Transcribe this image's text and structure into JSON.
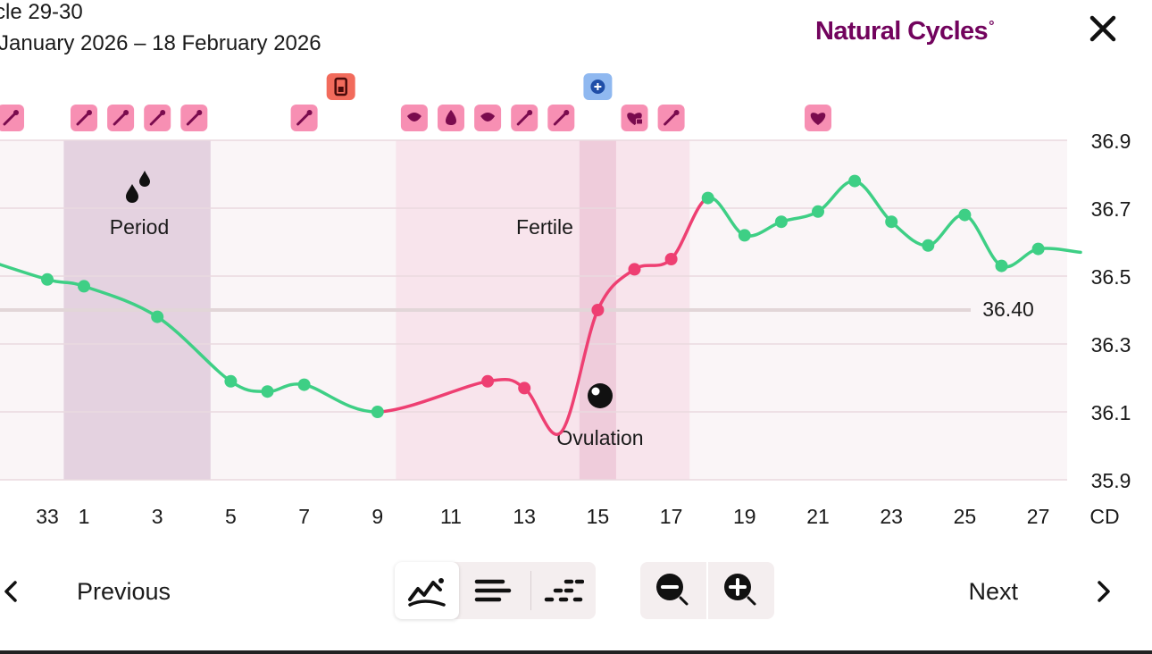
{
  "header": {
    "cycle_title": "cle 29-30",
    "date_range": "January 2026 – 18 February 2026",
    "logo_text": "Natural Cycles",
    "logo_ring": "°"
  },
  "colors": {
    "infertile": "#3ecf85",
    "fertile": "#ee3f72",
    "brand": "#72035d",
    "icon_badge": "#f78fb3",
    "period_band": "#e4d2e0",
    "fertile_band": "#f8e4ec",
    "ovulation_band": "#efccdb",
    "plot_bg": "#faf5f7"
  },
  "chart_data": {
    "type": "line",
    "title": "",
    "xlabel": "CD",
    "ylabel": "",
    "x_range": [
      32.5,
      27.8
    ],
    "ylim": [
      35.9,
      36.9
    ],
    "y_ticks": [
      "36.9",
      "36.7",
      "36.5",
      "36.3",
      "36.1",
      "35.9"
    ],
    "x_tick_labels": [
      "33",
      "1",
      "3",
      "5",
      "7",
      "9",
      "11",
      "13",
      "15",
      "17",
      "19",
      "21",
      "23",
      "25",
      "27"
    ],
    "x_axis_label": "CD",
    "cover_line": 36.4,
    "cover_line_label": "36.40",
    "points": [
      {
        "day": "1",
        "temp": 36.47,
        "fertile": false,
        "marker": true
      },
      {
        "day": "3",
        "temp": 36.38,
        "fertile": false,
        "marker": true
      },
      {
        "day": "5",
        "temp": 36.19,
        "fertile": false,
        "marker": true
      },
      {
        "day": "6",
        "temp": 36.16,
        "fertile": false,
        "marker": true
      },
      {
        "day": "7",
        "temp": 36.18,
        "fertile": false,
        "marker": true
      },
      {
        "day": "9",
        "temp": 36.1,
        "fertile": false,
        "marker": true
      },
      {
        "day": "12",
        "temp": 36.19,
        "fertile": true,
        "marker": true
      },
      {
        "day": "13",
        "temp": 36.17,
        "fertile": true,
        "marker": true
      },
      {
        "day": "14",
        "temp": 36.04,
        "fertile": true,
        "marker": false
      },
      {
        "day": "15",
        "temp": 36.4,
        "fertile": true,
        "marker": true
      },
      {
        "day": "16",
        "temp": 36.52,
        "fertile": true,
        "marker": true
      },
      {
        "day": "17",
        "temp": 36.55,
        "fertile": true,
        "marker": true
      },
      {
        "day": "18",
        "temp": 36.73,
        "fertile": false,
        "marker": true
      },
      {
        "day": "19",
        "temp": 36.62,
        "fertile": false,
        "marker": true
      },
      {
        "day": "20",
        "temp": 36.66,
        "fertile": false,
        "marker": true
      },
      {
        "day": "21",
        "temp": 36.69,
        "fertile": false,
        "marker": true
      },
      {
        "day": "22",
        "temp": 36.78,
        "fertile": false,
        "marker": true
      },
      {
        "day": "23",
        "temp": 36.66,
        "fertile": false,
        "marker": true
      },
      {
        "day": "24",
        "temp": 36.59,
        "fertile": false,
        "marker": true
      },
      {
        "day": "25",
        "temp": 36.68,
        "fertile": false,
        "marker": true
      },
      {
        "day": "26",
        "temp": 36.53,
        "fertile": false,
        "marker": true
      },
      {
        "day": "27",
        "temp": 36.58,
        "fertile": false,
        "marker": true
      }
    ],
    "bands": [
      {
        "name": "Period",
        "start": 0.45,
        "end": 4.45,
        "kind": "period"
      },
      {
        "name": "Fertile",
        "start": 9.5,
        "end": 17.5,
        "kind": "fertile"
      },
      {
        "name": "Ovulation",
        "start": 14.5,
        "end": 15.5,
        "kind": "ovulation"
      }
    ],
    "annotations": {
      "period": "Period",
      "fertile": "Fertile",
      "ovulation": "Ovulation"
    },
    "tracking_icons": [
      {
        "day": 33,
        "icon": "swab-icon"
      },
      {
        "day": 1,
        "icon": "swab-icon"
      },
      {
        "day": 2,
        "icon": "swab-icon"
      },
      {
        "day": 3,
        "icon": "swab-icon"
      },
      {
        "day": 4,
        "icon": "swab-icon"
      },
      {
        "day": 7,
        "icon": "swab-icon"
      },
      {
        "day": 10,
        "icon": "mucus-icon"
      },
      {
        "day": 11,
        "icon": "drop-icon"
      },
      {
        "day": 12,
        "icon": "mucus-icon"
      },
      {
        "day": 13,
        "icon": "swab-icon"
      },
      {
        "day": 14,
        "icon": "swab-icon"
      },
      {
        "day": 16,
        "icon": "heart-lock-icon"
      },
      {
        "day": 17,
        "icon": "swab-icon"
      },
      {
        "day": 21,
        "icon": "heart-icon"
      }
    ],
    "test_markers": [
      {
        "day": 8,
        "icon": "pregnancy-test-icon"
      },
      {
        "day": 15,
        "icon": "lh-test-icon"
      }
    ]
  },
  "controls": {
    "prev_label": "Previous",
    "next_label": "Next"
  }
}
